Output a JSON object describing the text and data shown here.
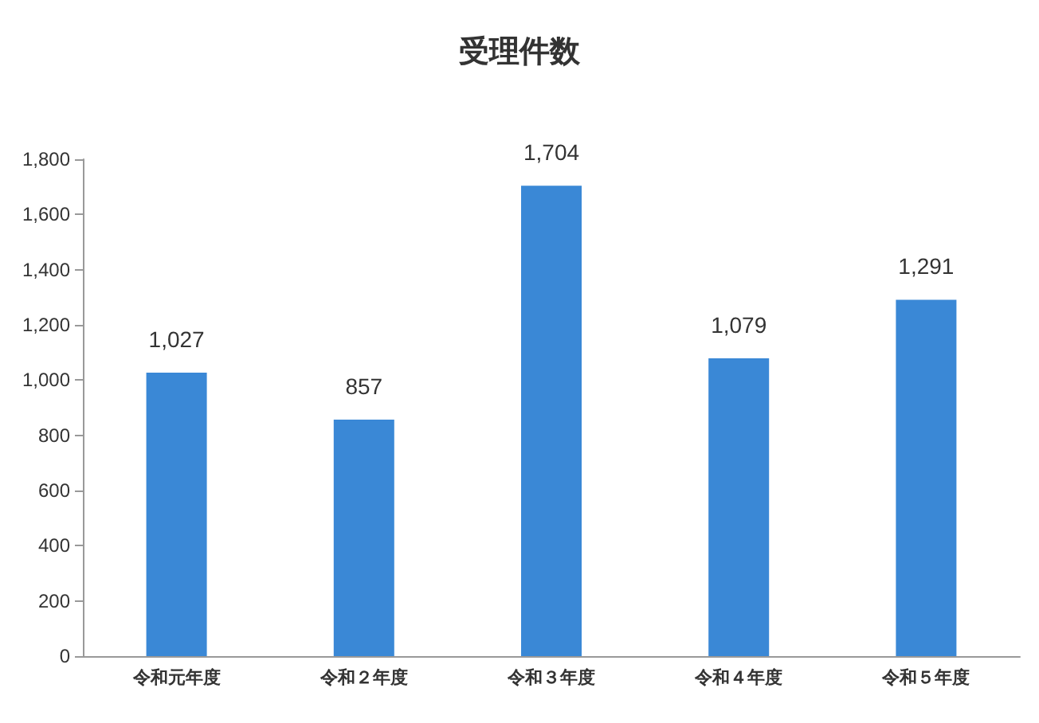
{
  "chart_data": {
    "type": "bar",
    "title": "受理件数",
    "categories": [
      "令和元年度",
      "令和２年度",
      "令和３年度",
      "令和４年度",
      "令和５年度"
    ],
    "values": [
      1027,
      857,
      1704,
      1079,
      1291
    ],
    "color": "#3a88d6",
    "ylim": [
      0,
      1800
    ],
    "yticks": [
      0,
      {
        "value": 200,
        "label": "200"
      },
      {
        "value": 400,
        "label": "400"
      },
      {
        "value": 600,
        "label": "600"
      },
      {
        "value": 800,
        "label": "800"
      },
      {
        "value": 1000,
        "label": "1,000"
      },
      {
        "value": 1200,
        "label": "1,200"
      },
      {
        "value": 1400,
        "label": "1,400"
      },
      {
        "value": 1600,
        "label": "1,600"
      },
      {
        "value": 1800,
        "label": "1,800"
      }
    ],
    "value_labels": [
      "1,027",
      "857",
      "1,704",
      "1,079",
      "1,291"
    ],
    "grid": false
  }
}
